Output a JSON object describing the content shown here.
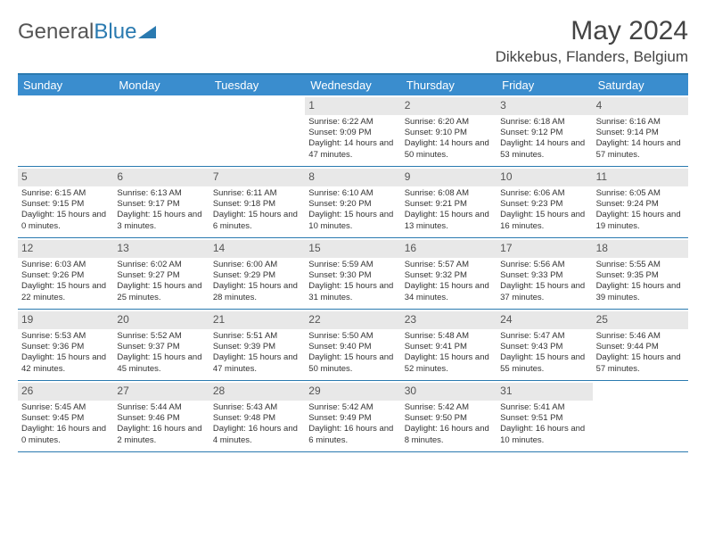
{
  "logo": {
    "text1": "General",
    "text2": "Blue"
  },
  "title": "May 2024",
  "location": "Dikkebus, Flanders, Belgium",
  "colors": {
    "header_bg": "#3a8dce",
    "border": "#2a7ab0",
    "daynum_bg": "#e8e8e8",
    "text": "#333333",
    "logo_gray": "#555555",
    "logo_blue": "#2a7ab0"
  },
  "day_names": [
    "Sunday",
    "Monday",
    "Tuesday",
    "Wednesday",
    "Thursday",
    "Friday",
    "Saturday"
  ],
  "weeks": [
    [
      {
        "n": "",
        "empty": true
      },
      {
        "n": "",
        "empty": true
      },
      {
        "n": "",
        "empty": true
      },
      {
        "n": "1",
        "sr": "6:22 AM",
        "ss": "9:09 PM",
        "dl": "14 hours and 47 minutes."
      },
      {
        "n": "2",
        "sr": "6:20 AM",
        "ss": "9:10 PM",
        "dl": "14 hours and 50 minutes."
      },
      {
        "n": "3",
        "sr": "6:18 AM",
        "ss": "9:12 PM",
        "dl": "14 hours and 53 minutes."
      },
      {
        "n": "4",
        "sr": "6:16 AM",
        "ss": "9:14 PM",
        "dl": "14 hours and 57 minutes."
      }
    ],
    [
      {
        "n": "5",
        "sr": "6:15 AM",
        "ss": "9:15 PM",
        "dl": "15 hours and 0 minutes."
      },
      {
        "n": "6",
        "sr": "6:13 AM",
        "ss": "9:17 PM",
        "dl": "15 hours and 3 minutes."
      },
      {
        "n": "7",
        "sr": "6:11 AM",
        "ss": "9:18 PM",
        "dl": "15 hours and 6 minutes."
      },
      {
        "n": "8",
        "sr": "6:10 AM",
        "ss": "9:20 PM",
        "dl": "15 hours and 10 minutes."
      },
      {
        "n": "9",
        "sr": "6:08 AM",
        "ss": "9:21 PM",
        "dl": "15 hours and 13 minutes."
      },
      {
        "n": "10",
        "sr": "6:06 AM",
        "ss": "9:23 PM",
        "dl": "15 hours and 16 minutes."
      },
      {
        "n": "11",
        "sr": "6:05 AM",
        "ss": "9:24 PM",
        "dl": "15 hours and 19 minutes."
      }
    ],
    [
      {
        "n": "12",
        "sr": "6:03 AM",
        "ss": "9:26 PM",
        "dl": "15 hours and 22 minutes."
      },
      {
        "n": "13",
        "sr": "6:02 AM",
        "ss": "9:27 PM",
        "dl": "15 hours and 25 minutes."
      },
      {
        "n": "14",
        "sr": "6:00 AM",
        "ss": "9:29 PM",
        "dl": "15 hours and 28 minutes."
      },
      {
        "n": "15",
        "sr": "5:59 AM",
        "ss": "9:30 PM",
        "dl": "15 hours and 31 minutes."
      },
      {
        "n": "16",
        "sr": "5:57 AM",
        "ss": "9:32 PM",
        "dl": "15 hours and 34 minutes."
      },
      {
        "n": "17",
        "sr": "5:56 AM",
        "ss": "9:33 PM",
        "dl": "15 hours and 37 minutes."
      },
      {
        "n": "18",
        "sr": "5:55 AM",
        "ss": "9:35 PM",
        "dl": "15 hours and 39 minutes."
      }
    ],
    [
      {
        "n": "19",
        "sr": "5:53 AM",
        "ss": "9:36 PM",
        "dl": "15 hours and 42 minutes."
      },
      {
        "n": "20",
        "sr": "5:52 AM",
        "ss": "9:37 PM",
        "dl": "15 hours and 45 minutes."
      },
      {
        "n": "21",
        "sr": "5:51 AM",
        "ss": "9:39 PM",
        "dl": "15 hours and 47 minutes."
      },
      {
        "n": "22",
        "sr": "5:50 AM",
        "ss": "9:40 PM",
        "dl": "15 hours and 50 minutes."
      },
      {
        "n": "23",
        "sr": "5:48 AM",
        "ss": "9:41 PM",
        "dl": "15 hours and 52 minutes."
      },
      {
        "n": "24",
        "sr": "5:47 AM",
        "ss": "9:43 PM",
        "dl": "15 hours and 55 minutes."
      },
      {
        "n": "25",
        "sr": "5:46 AM",
        "ss": "9:44 PM",
        "dl": "15 hours and 57 minutes."
      }
    ],
    [
      {
        "n": "26",
        "sr": "5:45 AM",
        "ss": "9:45 PM",
        "dl": "16 hours and 0 minutes."
      },
      {
        "n": "27",
        "sr": "5:44 AM",
        "ss": "9:46 PM",
        "dl": "16 hours and 2 minutes."
      },
      {
        "n": "28",
        "sr": "5:43 AM",
        "ss": "9:48 PM",
        "dl": "16 hours and 4 minutes."
      },
      {
        "n": "29",
        "sr": "5:42 AM",
        "ss": "9:49 PM",
        "dl": "16 hours and 6 minutes."
      },
      {
        "n": "30",
        "sr": "5:42 AM",
        "ss": "9:50 PM",
        "dl": "16 hours and 8 minutes."
      },
      {
        "n": "31",
        "sr": "5:41 AM",
        "ss": "9:51 PM",
        "dl": "16 hours and 10 minutes."
      },
      {
        "n": "",
        "empty": true
      }
    ]
  ],
  "labels": {
    "sunrise": "Sunrise:",
    "sunset": "Sunset:",
    "daylight": "Daylight:"
  }
}
